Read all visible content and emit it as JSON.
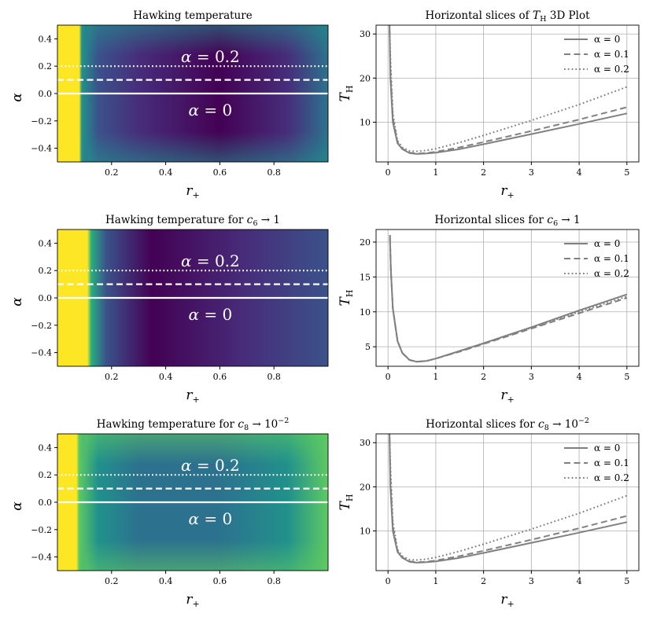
{
  "colors": {
    "line": "#808080",
    "grid": "#b0b0b0",
    "hot": "#fde725",
    "annotation": "#ffffff"
  },
  "chart_data": [
    {
      "type": "heatmap",
      "title_parts": [
        "Hawking temperature"
      ],
      "xlabel": "r",
      "xlabel_sub": "+",
      "ylabel": "α",
      "xlim": [
        0.0,
        1.0
      ],
      "ylim": [
        -0.5,
        0.5
      ],
      "xticks": [
        "0.2",
        "0.4",
        "0.6",
        "0.8"
      ],
      "yticks": [
        "0.4",
        "0.2",
        "0.0",
        "−0.2",
        "−0.4"
      ],
      "colormap": "viridis",
      "hot_edge_r_plus": 0.08,
      "interior_value": "low",
      "edge_value": "medium",
      "horizontal_lines": [
        {
          "alpha": 0.2,
          "style": "dotted"
        },
        {
          "alpha": 0.1,
          "style": "dashed"
        },
        {
          "alpha": 0.0,
          "style": "solid"
        }
      ],
      "annotations": [
        {
          "name": "α",
          "eq": " = 0.2",
          "alpha": 0.27
        },
        {
          "name": "α",
          "eq": " = 0",
          "alpha": -0.12
        }
      ]
    },
    {
      "type": "line",
      "title_parts": [
        "Horizontal slices of ",
        "T",
        "H",
        " 3D Plot"
      ],
      "xlabel": "r",
      "xlabel_sub": "+",
      "ylabel": "T",
      "ylabel_sub": "H",
      "xlim": [
        -0.25,
        5.25
      ],
      "ylim": [
        1,
        32
      ],
      "xticks": [
        "0",
        "1",
        "2",
        "3",
        "4",
        "5"
      ],
      "yticks": [
        "10",
        "20",
        "30"
      ],
      "legend_position": "upper-right",
      "series": [
        {
          "name": "α = 0",
          "style": "solid",
          "points": [
            [
              0.03,
              33
            ],
            [
              0.05,
              20
            ],
            [
              0.1,
              10
            ],
            [
              0.2,
              5.2
            ],
            [
              0.3,
              3.9
            ],
            [
              0.45,
              3.0
            ],
            [
              0.6,
              2.8
            ],
            [
              0.8,
              2.9
            ],
            [
              1.0,
              3.1
            ],
            [
              1.5,
              3.9
            ],
            [
              2.0,
              5.0
            ],
            [
              3.0,
              7.3
            ],
            [
              4.0,
              9.6
            ],
            [
              5.0,
              12.0
            ]
          ]
        },
        {
          "name": "α = 0.1",
          "style": "dashed",
          "points": [
            [
              0.03,
              33
            ],
            [
              0.05,
              22
            ],
            [
              0.1,
              11
            ],
            [
              0.2,
              5.4
            ],
            [
              0.3,
              4.0
            ],
            [
              0.45,
              3.1
            ],
            [
              0.6,
              2.9
            ],
            [
              0.8,
              3.0
            ],
            [
              1.0,
              3.3
            ],
            [
              1.5,
              4.3
            ],
            [
              2.0,
              5.5
            ],
            [
              3.0,
              8.0
            ],
            [
              4.0,
              10.6
            ],
            [
              5.0,
              13.4
            ]
          ]
        },
        {
          "name": "α = 0.2",
          "style": "dotted",
          "points": [
            [
              0.03,
              33
            ],
            [
              0.05,
              25
            ],
            [
              0.1,
              12
            ],
            [
              0.2,
              5.8
            ],
            [
              0.3,
              4.3
            ],
            [
              0.45,
              3.5
            ],
            [
              0.6,
              3.4
            ],
            [
              0.8,
              3.6
            ],
            [
              1.0,
              4.0
            ],
            [
              1.5,
              5.4
            ],
            [
              2.0,
              7.0
            ],
            [
              3.0,
              10.4
            ],
            [
              4.0,
              14.0
            ],
            [
              5.0,
              18.0
            ]
          ]
        }
      ]
    },
    {
      "type": "heatmap",
      "title_parts": [
        "Hawking temperature for ",
        "c",
        "6",
        " → 1"
      ],
      "xlabel": "r",
      "xlabel_sub": "+",
      "ylabel": "α",
      "xlim": [
        0.0,
        1.0
      ],
      "ylim": [
        -0.5,
        0.5
      ],
      "xticks": [
        "0.2",
        "0.4",
        "0.6",
        "0.8"
      ],
      "yticks": [
        "0.4",
        "0.2",
        "0.0",
        "−0.2",
        "−0.4"
      ],
      "colormap": "viridis",
      "hot_edge_r_plus": 0.11,
      "interior_value": "low",
      "edge_value": "low",
      "horizontal_lines": [
        {
          "alpha": 0.2,
          "style": "dotted"
        },
        {
          "alpha": 0.1,
          "style": "dashed"
        },
        {
          "alpha": 0.0,
          "style": "solid"
        }
      ],
      "annotations": [
        {
          "name": "α",
          "eq": " = 0.2",
          "alpha": 0.27
        },
        {
          "name": "α",
          "eq": " = 0",
          "alpha": -0.12
        }
      ]
    },
    {
      "type": "line",
      "title_parts": [
        "Horizontal slices for ",
        "c",
        "6",
        " → 1"
      ],
      "xlabel": "r",
      "xlabel_sub": "+",
      "ylabel": "T",
      "ylabel_sub": "H",
      "xlim": [
        -0.25,
        5.25
      ],
      "ylim": [
        2.2,
        21.8
      ],
      "xticks": [
        "0",
        "1",
        "2",
        "3",
        "4",
        "5"
      ],
      "yticks": [
        "5",
        "10",
        "15",
        "20"
      ],
      "legend_position": "upper-right",
      "series": [
        {
          "name": "α = 0",
          "style": "solid",
          "points": [
            [
              0.04,
              21
            ],
            [
              0.06,
              16
            ],
            [
              0.1,
              10.5
            ],
            [
              0.2,
              5.8
            ],
            [
              0.3,
              4.1
            ],
            [
              0.45,
              3.1
            ],
            [
              0.6,
              2.85
            ],
            [
              0.8,
              2.95
            ],
            [
              1.0,
              3.3
            ],
            [
              1.5,
              4.4
            ],
            [
              2.0,
              5.5
            ],
            [
              3.0,
              7.8
            ],
            [
              4.0,
              10.2
            ],
            [
              5.0,
              12.5
            ]
          ]
        },
        {
          "name": "α = 0.1",
          "style": "dashed",
          "points": [
            [
              0.04,
              21
            ],
            [
              0.06,
              16
            ],
            [
              0.1,
              10.5
            ],
            [
              0.2,
              5.8
            ],
            [
              0.3,
              4.1
            ],
            [
              0.45,
              3.1
            ],
            [
              0.6,
              2.85
            ],
            [
              0.8,
              2.95
            ],
            [
              1.0,
              3.3
            ],
            [
              1.5,
              4.3
            ],
            [
              2.0,
              5.4
            ],
            [
              3.0,
              7.6
            ],
            [
              4.0,
              9.8
            ],
            [
              5.0,
              12.0
            ]
          ]
        },
        {
          "name": "α = 0.2",
          "style": "dotted",
          "points": [
            [
              0.04,
              21
            ],
            [
              0.06,
              16
            ],
            [
              0.1,
              10.5
            ],
            [
              0.2,
              5.8
            ],
            [
              0.3,
              4.1
            ],
            [
              0.45,
              3.1
            ],
            [
              0.6,
              2.85
            ],
            [
              0.8,
              2.95
            ],
            [
              1.0,
              3.3
            ],
            [
              1.5,
              4.35
            ],
            [
              2.0,
              5.45
            ],
            [
              3.0,
              7.7
            ],
            [
              4.0,
              10.0
            ],
            [
              5.0,
              12.2
            ]
          ]
        }
      ]
    },
    {
      "type": "heatmap",
      "title_parts": [
        "Hawking temperature for ",
        "c",
        "8",
        " → 10",
        "−2"
      ],
      "xlabel": "r",
      "xlabel_sub": "+",
      "ylabel": "α",
      "xlim": [
        0.0,
        1.0
      ],
      "ylim": [
        -0.5,
        0.5
      ],
      "xticks": [
        "0.2",
        "0.4",
        "0.6",
        "0.8"
      ],
      "yticks": [
        "0.4",
        "0.2",
        "0.0",
        "−0.2",
        "−0.4"
      ],
      "colormap": "viridis",
      "hot_edge_r_plus": 0.07,
      "interior_value": "medium",
      "edge_value": "high",
      "horizontal_lines": [
        {
          "alpha": 0.2,
          "style": "dotted"
        },
        {
          "alpha": 0.1,
          "style": "dashed"
        },
        {
          "alpha": 0.0,
          "style": "solid"
        }
      ],
      "annotations": [
        {
          "name": "α",
          "eq": " = 0.2",
          "alpha": 0.27
        },
        {
          "name": "α",
          "eq": " = 0",
          "alpha": -0.12
        }
      ]
    },
    {
      "type": "line",
      "title_parts": [
        "Horizontal slices for ",
        "c",
        "8",
        " → 10",
        "−2"
      ],
      "xlabel": "r",
      "xlabel_sub": "+",
      "ylabel": "T",
      "ylabel_sub": "H",
      "xlim": [
        -0.25,
        5.25
      ],
      "ylim": [
        1,
        32
      ],
      "xticks": [
        "0",
        "1",
        "2",
        "3",
        "4",
        "5"
      ],
      "yticks": [
        "10",
        "20",
        "30"
      ],
      "legend_position": "upper-right",
      "series": [
        {
          "name": "α = 0",
          "style": "solid",
          "points": [
            [
              0.03,
              33
            ],
            [
              0.05,
              20
            ],
            [
              0.1,
              10
            ],
            [
              0.2,
              5.2
            ],
            [
              0.3,
              3.9
            ],
            [
              0.45,
              3.0
            ],
            [
              0.6,
              2.8
            ],
            [
              0.8,
              2.9
            ],
            [
              1.0,
              3.1
            ],
            [
              1.5,
              3.9
            ],
            [
              2.0,
              5.0
            ],
            [
              3.0,
              7.3
            ],
            [
              4.0,
              9.6
            ],
            [
              5.0,
              12.0
            ]
          ]
        },
        {
          "name": "α = 0.1",
          "style": "dashed",
          "points": [
            [
              0.03,
              33
            ],
            [
              0.05,
              22
            ],
            [
              0.1,
              11
            ],
            [
              0.2,
              5.4
            ],
            [
              0.3,
              4.0
            ],
            [
              0.45,
              3.1
            ],
            [
              0.6,
              2.9
            ],
            [
              0.8,
              3.0
            ],
            [
              1.0,
              3.3
            ],
            [
              1.5,
              4.3
            ],
            [
              2.0,
              5.5
            ],
            [
              3.0,
              8.0
            ],
            [
              4.0,
              10.6
            ],
            [
              5.0,
              13.4
            ]
          ]
        },
        {
          "name": "α = 0.2",
          "style": "dotted",
          "points": [
            [
              0.03,
              33
            ],
            [
              0.05,
              25
            ],
            [
              0.1,
              12
            ],
            [
              0.2,
              5.8
            ],
            [
              0.3,
              4.3
            ],
            [
              0.45,
              3.5
            ],
            [
              0.6,
              3.4
            ],
            [
              0.8,
              3.6
            ],
            [
              1.0,
              4.0
            ],
            [
              1.5,
              5.4
            ],
            [
              2.0,
              7.0
            ],
            [
              3.0,
              10.4
            ],
            [
              4.0,
              14.0
            ],
            [
              5.0,
              18.0
            ]
          ]
        }
      ]
    }
  ]
}
